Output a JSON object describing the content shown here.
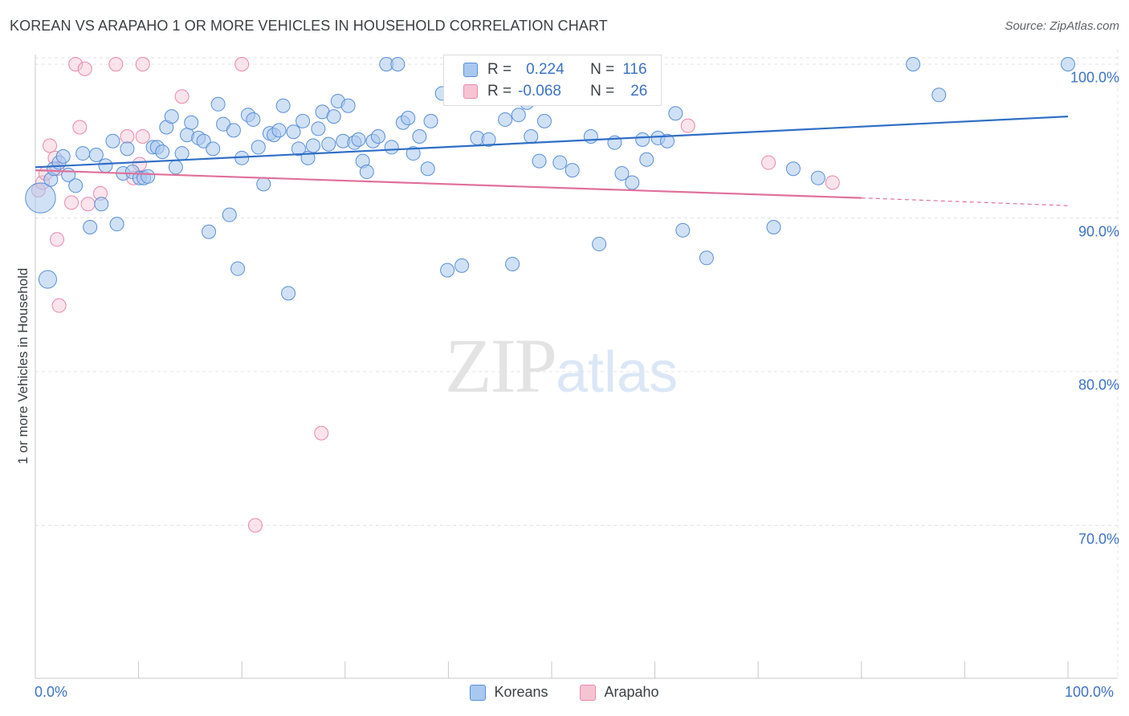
{
  "header": {
    "title": "KOREAN VS ARAPAHO 1 OR MORE VEHICLES IN HOUSEHOLD CORRELATION CHART",
    "source": "Source: ZipAtlas.com"
  },
  "watermark": {
    "zip": "ZIP",
    "atlas": "atlas"
  },
  "stats": {
    "koreans": {
      "r_label": "R =",
      "r_value": "0.224",
      "n_label": "N =",
      "n_value": "116"
    },
    "arapaho": {
      "r_label": "R =",
      "r_value": "-0.068",
      "n_label": "N =",
      "n_value": "26"
    }
  },
  "legend": {
    "koreans": "Koreans",
    "arapaho": "Arapaho"
  },
  "colors": {
    "koreans_fill": "#a9c8ef",
    "koreans_stroke": "#5a8fd6",
    "koreans_line": "#2f6fc6",
    "arapaho_fill": "#f6c3d3",
    "arapaho_stroke": "#e889a8",
    "arapaho_line": "#e0709a",
    "tick_label": "#3d72c4",
    "grid": "#e3e3e3"
  },
  "chart_data": {
    "type": "scatter",
    "title": "KOREAN VS ARAPAHO 1 OR MORE VEHICLES IN HOUSEHOLD CORRELATION CHART",
    "xlabel": "",
    "ylabel": "1 or more Vehicles in Household",
    "xlim": [
      0,
      100
    ],
    "ylim": [
      59,
      101.5
    ],
    "x_tick_labels": [
      "0.0%",
      "100.0%"
    ],
    "y_ticks": [
      {
        "value": 100,
        "label": "100.0%"
      },
      {
        "value": 90,
        "label": "90.0%"
      },
      {
        "value": 80,
        "label": "80.0%"
      },
      {
        "value": 70,
        "label": "70.0%"
      }
    ],
    "grid": true,
    "legend_position": "bottom-center",
    "series": [
      {
        "name": "Koreans",
        "trend": {
          "x": [
            0,
            100
          ],
          "y": [
            93.3,
            96.6
          ]
        },
        "points": [
          [
            0.5,
            91.3,
            2.2
          ],
          [
            1.2,
            86.0,
            1.3
          ],
          [
            1.5,
            92.5,
            1
          ],
          [
            1.8,
            93.2,
            1
          ],
          [
            2.3,
            93.6,
            1
          ],
          [
            2.7,
            94.0,
            1
          ],
          [
            3.2,
            92.8,
            1
          ],
          [
            3.9,
            92.1,
            1
          ],
          [
            4.6,
            94.2,
            1
          ],
          [
            5.3,
            89.4,
            1
          ],
          [
            5.9,
            94.1,
            1
          ],
          [
            6.4,
            90.9,
            1
          ],
          [
            6.8,
            93.4,
            1
          ],
          [
            7.5,
            95.0,
            1
          ],
          [
            7.9,
            89.6,
            1
          ],
          [
            8.5,
            92.9,
            1
          ],
          [
            8.9,
            94.5,
            1
          ],
          [
            9.4,
            93.0,
            1
          ],
          [
            10.1,
            92.6,
            1
          ],
          [
            10.5,
            92.6,
            1
          ],
          [
            10.9,
            92.7,
            1
          ],
          [
            11.4,
            94.6,
            1
          ],
          [
            11.8,
            94.6,
            1
          ],
          [
            12.3,
            94.3,
            1
          ],
          [
            12.7,
            95.9,
            1
          ],
          [
            13.2,
            96.6,
            1
          ],
          [
            13.6,
            93.3,
            1
          ],
          [
            14.2,
            94.2,
            1
          ],
          [
            14.7,
            95.4,
            1
          ],
          [
            15.1,
            96.2,
            1
          ],
          [
            15.8,
            95.2,
            1
          ],
          [
            16.3,
            95.0,
            1
          ],
          [
            16.8,
            89.1,
            1
          ],
          [
            17.2,
            94.5,
            1
          ],
          [
            17.7,
            97.4,
            1
          ],
          [
            18.2,
            96.1,
            1
          ],
          [
            18.8,
            90.2,
            1
          ],
          [
            19.2,
            95.7,
            1
          ],
          [
            19.6,
            86.7,
            1
          ],
          [
            20.0,
            93.9,
            1
          ],
          [
            20.6,
            96.7,
            1
          ],
          [
            21.1,
            96.4,
            1
          ],
          [
            21.6,
            94.6,
            1
          ],
          [
            22.1,
            92.2,
            1
          ],
          [
            22.7,
            95.5,
            1
          ],
          [
            23.1,
            95.4,
            1
          ],
          [
            23.6,
            95.7,
            1
          ],
          [
            24.0,
            97.3,
            1
          ],
          [
            24.5,
            85.1,
            1
          ],
          [
            25.0,
            95.6,
            1
          ],
          [
            25.5,
            94.5,
            1
          ],
          [
            25.9,
            96.3,
            1
          ],
          [
            26.4,
            93.9,
            1
          ],
          [
            26.9,
            94.7,
            1
          ],
          [
            27.4,
            95.8,
            1
          ],
          [
            27.8,
            96.9,
            1
          ],
          [
            28.4,
            94.8,
            1
          ],
          [
            28.9,
            96.6,
            1
          ],
          [
            29.3,
            97.6,
            1
          ],
          [
            29.8,
            95.0,
            1
          ],
          [
            30.3,
            97.3,
            1
          ],
          [
            30.9,
            94.9,
            1
          ],
          [
            31.3,
            95.1,
            1
          ],
          [
            31.7,
            93.7,
            1
          ],
          [
            32.1,
            93.0,
            1
          ],
          [
            32.7,
            95.0,
            1
          ],
          [
            33.2,
            95.3,
            1
          ],
          [
            34.0,
            100.0,
            1
          ],
          [
            34.5,
            94.6,
            1
          ],
          [
            35.1,
            100.0,
            1
          ],
          [
            35.6,
            96.2,
            1
          ],
          [
            36.1,
            96.5,
            1
          ],
          [
            36.6,
            94.2,
            1
          ],
          [
            37.2,
            95.3,
            1
          ],
          [
            38.0,
            93.2,
            1
          ],
          [
            38.3,
            96.3,
            1
          ],
          [
            39.4,
            98.1,
            1
          ],
          [
            39.9,
            86.6,
            1
          ],
          [
            40.3,
            98.9,
            1
          ],
          [
            40.8,
            100.0,
            1
          ],
          [
            41.3,
            86.9,
            1
          ],
          [
            42.5,
            99.1,
            1
          ],
          [
            42.8,
            95.2,
            1
          ],
          [
            43.2,
            98.5,
            1
          ],
          [
            43.9,
            95.1,
            1
          ],
          [
            45.5,
            96.4,
            1
          ],
          [
            46.2,
            87.0,
            1
          ],
          [
            46.8,
            96.7,
            1
          ],
          [
            47.6,
            97.5,
            1
          ],
          [
            48.0,
            95.3,
            1
          ],
          [
            48.8,
            93.7,
            1
          ],
          [
            49.3,
            96.3,
            1
          ],
          [
            50.8,
            93.6,
            1
          ],
          [
            52.0,
            93.1,
            1
          ],
          [
            53.3,
            98.3,
            1
          ],
          [
            53.8,
            95.3,
            1
          ],
          [
            54.6,
            88.3,
            1
          ],
          [
            55.2,
            98.6,
            1
          ],
          [
            56.1,
            94.9,
            1
          ],
          [
            56.8,
            92.9,
            1
          ],
          [
            57.8,
            92.3,
            1
          ],
          [
            58.8,
            95.1,
            1
          ],
          [
            59.2,
            93.8,
            1
          ],
          [
            60.3,
            95.2,
            1
          ],
          [
            61.2,
            95.0,
            1
          ],
          [
            62.0,
            96.8,
            1
          ],
          [
            62.7,
            89.2,
            1
          ],
          [
            65.0,
            87.4,
            1
          ],
          [
            71.5,
            89.4,
            1
          ],
          [
            73.4,
            93.2,
            1
          ],
          [
            75.8,
            92.6,
            1
          ],
          [
            85.0,
            100.0,
            1
          ],
          [
            87.5,
            98.0,
            1
          ],
          [
            100.0,
            100.0,
            1
          ]
        ]
      },
      {
        "name": "Arapaho",
        "trend": {
          "x": [
            0,
            80
          ],
          "y": [
            93.1,
            91.3
          ]
        },
        "trend_dashed_to": {
          "x": 100,
          "y": 90.8
        },
        "points": [
          [
            0.3,
            91.8,
            1
          ],
          [
            0.7,
            92.3,
            1
          ],
          [
            1.0,
            92.9,
            1
          ],
          [
            1.4,
            94.7,
            1
          ],
          [
            1.9,
            93.9,
            1
          ],
          [
            2.1,
            93.2,
            1
          ],
          [
            2.1,
            88.6,
            1
          ],
          [
            2.3,
            84.3,
            1
          ],
          [
            3.5,
            91.0,
            1
          ],
          [
            3.9,
            100.0,
            1
          ],
          [
            4.3,
            95.9,
            1
          ],
          [
            4.8,
            99.7,
            1
          ],
          [
            5.1,
            90.9,
            1
          ],
          [
            6.3,
            91.6,
            1
          ],
          [
            7.8,
            100.0,
            1
          ],
          [
            8.9,
            95.3,
            1
          ],
          [
            9.5,
            92.6,
            1
          ],
          [
            10.1,
            93.5,
            1
          ],
          [
            10.4,
            95.3,
            1
          ],
          [
            10.4,
            100.0,
            1
          ],
          [
            14.2,
            97.9,
            1
          ],
          [
            20.0,
            100.0,
            1
          ],
          [
            21.3,
            70.0,
            1
          ],
          [
            27.7,
            76.0,
            1
          ],
          [
            63.2,
            96.0,
            1
          ],
          [
            71.0,
            93.6,
            1
          ],
          [
            77.2,
            92.3,
            1
          ]
        ]
      }
    ]
  }
}
